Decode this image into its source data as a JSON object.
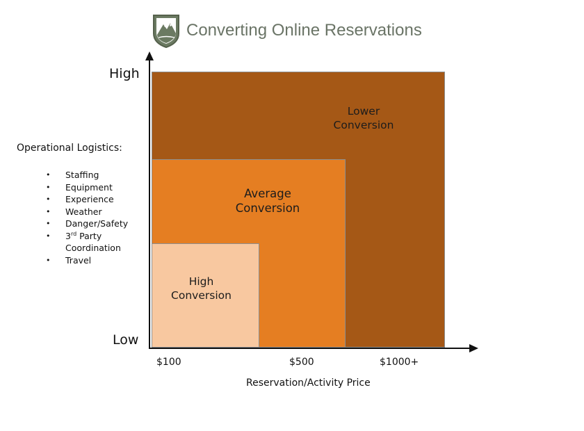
{
  "header": {
    "title": "Converting Online Reservations",
    "logo_icon": "mountain-shield-logo-icon"
  },
  "y_axis": {
    "high_label": "High",
    "low_label": "Low"
  },
  "x_axis": {
    "title": "Reservation/Activity Price",
    "ticks": [
      "$100",
      "$500",
      "$1000+"
    ]
  },
  "sidebar": {
    "title": "Operational Logistics:",
    "items": [
      "Staffing",
      "Equipment",
      "Experience",
      "Weather",
      "Danger/Safety"
    ],
    "third_party_prefix": "3",
    "third_party_sup": "rd",
    "third_party_line1": " Party",
    "third_party_line2": "Coordination",
    "last_item": "Travel"
  },
  "zones": {
    "lower": {
      "line1": "Lower",
      "line2": "Conversion",
      "color": "#a55816"
    },
    "average": {
      "line1": "Average",
      "line2": "Conversion",
      "color": "#e57e22"
    },
    "high": {
      "line1": "High",
      "line2": "Conversion",
      "color": "#f8c8a0"
    }
  },
  "colors": {
    "title": "#6a7466",
    "logo_green": "#5f6b55",
    "axis": "#111111"
  }
}
